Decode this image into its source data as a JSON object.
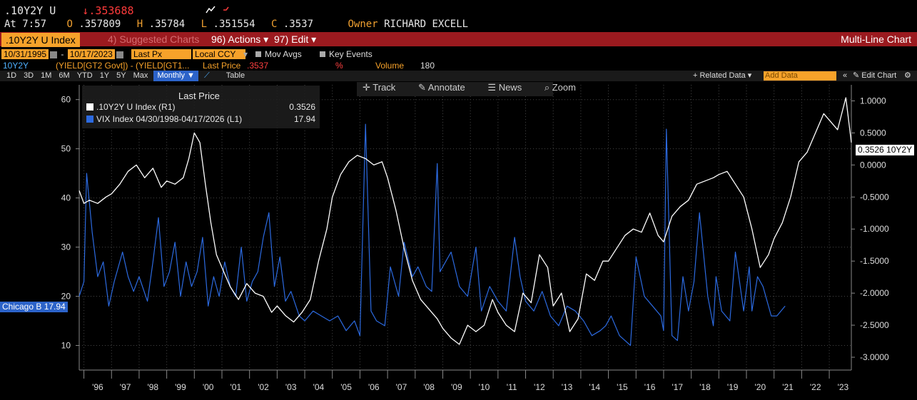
{
  "quote": {
    "ticker": ".10Y2Y U",
    "arrow": "↓",
    "last": ".353688",
    "at_label": "At",
    "time": "7:57",
    "open_label": "O",
    "open": ".357809",
    "high_label": "H",
    "high": ".35784",
    "low_label": "L",
    "low": ".351554",
    "close_label": "C",
    "close": ".3537",
    "owner_label": "Owner",
    "owner": "RICHARD EXCELL"
  },
  "menubar": {
    "security": ".10Y2Y U Index",
    "suggested": "4) Suggested Charts",
    "actions": "96) Actions",
    "edit": "97) Edit",
    "chart_type": "Multi-Line Chart"
  },
  "controls": {
    "start_date": "10/31/1995",
    "end_date": "10/17/2023",
    "price_field": "Last Px",
    "currency": "Local CCY",
    "mov_avgs": "Mov Avgs",
    "key_events": "Key Events"
  },
  "ticker_line": {
    "name": "10Y2Y",
    "formula": "(YIELD[GT2 Govt]) - (YIELD[GT1...",
    "last_price_label": "Last Price",
    "last_price": ".3537",
    "pct": "%",
    "volume_label": "Volume",
    "volume": "180"
  },
  "toolbar": {
    "periods": [
      "1D",
      "3D",
      "1M",
      "6M",
      "YTD",
      "1Y",
      "5Y",
      "Max"
    ],
    "frequency": "Monthly",
    "table": "Table",
    "related": "+ Related Data",
    "add_data": "Add Data",
    "edit_chart": "Edit Chart"
  },
  "chart_tools": {
    "track": "Track",
    "annotate": "Annotate",
    "news": "News",
    "zoom": "Zoom"
  },
  "legend": {
    "title": "Last Price",
    "s1_label": ".10Y2Y U Index  (R1)",
    "s1_value": "0.3526",
    "s2_label": "VIX Index 04/30/1998-04/17/2026   (L1)",
    "s2_value": "17.94"
  },
  "last_tags": {
    "right": "0.3526 10Y2Y",
    "left": "Chicago B 17.94"
  },
  "colors": {
    "bg": "#000000",
    "amber": "#f7a22a",
    "menu": "#9b1a1f",
    "series1": "#ffffff",
    "series2": "#2c6ae0"
  },
  "chart_data": {
    "type": "line",
    "x_tick_labels": [
      "'96",
      "'97",
      "'98",
      "'99",
      "'00",
      "'01",
      "'02",
      "'03",
      "'04",
      "'05",
      "'06",
      "'07",
      "'08",
      "'09",
      "'10",
      "'11",
      "'12",
      "'13",
      "'14",
      "'15",
      "'16",
      "'17",
      "'18",
      "'19",
      "'20",
      "'21",
      "'22",
      "'23"
    ],
    "xlim": [
      1995.83,
      2023.8
    ],
    "y_left": {
      "ticks": [
        10,
        20,
        30,
        40,
        50,
        60
      ],
      "lim": [
        5,
        63
      ]
    },
    "y_right": {
      "ticks": [
        1.0,
        0.5,
        0.0,
        -0.5,
        -1.0,
        -1.5,
        -2.0,
        -2.5,
        -3.0
      ],
      "tick_labels": [
        "1.0000",
        "0.5000",
        "0.0000",
        "-0.5000",
        "-1.0000",
        "-1.5000",
        "-2.0000",
        "-2.5000",
        "-3.0000"
      ],
      "lim": [
        -3.2,
        1.25
      ]
    },
    "grid": true,
    "series": [
      {
        "name": ".10Y2Y U Index",
        "axis": "right",
        "x": [
          1995.83,
          1996.0,
          1996.2,
          1996.5,
          1996.8,
          1997.0,
          1997.3,
          1997.6,
          1997.9,
          1998.2,
          1998.5,
          1998.8,
          1999.0,
          1999.3,
          1999.6,
          1999.8,
          2000.0,
          2000.2,
          2000.4,
          2000.6,
          2000.8,
          2001.0,
          2001.3,
          2001.6,
          2001.9,
          2002.2,
          2002.5,
          2002.8,
          2003.0,
          2003.3,
          2003.6,
          2003.9,
          2004.2,
          2004.5,
          2004.8,
          2005.0,
          2005.3,
          2005.6,
          2005.9,
          2006.2,
          2006.5,
          2006.8,
          2007.0,
          2007.3,
          2007.6,
          2007.9,
          2008.2,
          2008.5,
          2008.8,
          2009.0,
          2009.3,
          2009.6,
          2009.9,
          2010.2,
          2010.5,
          2010.8,
          2011.0,
          2011.3,
          2011.6,
          2011.9,
          2012.2,
          2012.5,
          2012.8,
          2013.0,
          2013.3,
          2013.6,
          2013.9,
          2014.2,
          2014.5,
          2014.8,
          2015.0,
          2015.3,
          2015.6,
          2015.9,
          2016.2,
          2016.5,
          2016.8,
          2017.0,
          2017.3,
          2017.6,
          2017.9,
          2018.2,
          2018.5,
          2018.8,
          2019.0,
          2019.3,
          2019.6,
          2019.9,
          2020.2,
          2020.5,
          2020.8,
          2021.0,
          2021.3,
          2021.6,
          2021.9,
          2022.2,
          2022.5,
          2022.8,
          2023.0,
          2023.3,
          2023.6,
          2023.8
        ],
        "y": [
          -0.4,
          -0.6,
          -0.55,
          -0.6,
          -0.5,
          -0.45,
          -0.3,
          -0.1,
          0.0,
          -0.2,
          -0.05,
          -0.35,
          -0.25,
          -0.3,
          -0.2,
          0.1,
          0.5,
          0.35,
          -0.3,
          -0.9,
          -1.4,
          -1.6,
          -1.9,
          -2.1,
          -1.85,
          -2.0,
          -2.05,
          -2.3,
          -2.2,
          -2.35,
          -2.45,
          -2.3,
          -2.1,
          -1.5,
          -1.0,
          -0.5,
          -0.15,
          0.05,
          0.15,
          0.1,
          0.0,
          0.05,
          -0.2,
          -0.7,
          -1.3,
          -1.8,
          -2.1,
          -2.25,
          -2.4,
          -2.55,
          -2.7,
          -2.8,
          -2.5,
          -2.6,
          -2.5,
          -2.1,
          -2.3,
          -2.5,
          -2.6,
          -2.0,
          -2.15,
          -1.4,
          -1.6,
          -2.2,
          -2.0,
          -2.6,
          -2.4,
          -1.7,
          -1.8,
          -1.5,
          -1.5,
          -1.3,
          -1.1,
          -1.0,
          -1.05,
          -0.75,
          -1.1,
          -1.2,
          -0.8,
          -0.65,
          -0.55,
          -0.3,
          -0.25,
          -0.2,
          -0.15,
          -0.1,
          -0.3,
          -0.5,
          -1.0,
          -1.6,
          -1.4,
          -1.15,
          -0.9,
          -0.5,
          0.05,
          0.2,
          0.5,
          0.8,
          0.7,
          0.55,
          1.05,
          0.35
        ]
      },
      {
        "name": "VIX Index",
        "axis": "left",
        "x": [
          1995.83,
          1996.0,
          1996.1,
          1996.3,
          1996.5,
          1996.7,
          1996.9,
          1997.1,
          1997.4,
          1997.6,
          1997.8,
          1998.0,
          1998.3,
          1998.5,
          1998.7,
          1998.9,
          1999.1,
          1999.3,
          1999.5,
          1999.7,
          1999.9,
          2000.1,
          2000.3,
          2000.5,
          2000.7,
          2000.9,
          2001.1,
          2001.3,
          2001.5,
          2001.7,
          2001.9,
          2002.1,
          2002.3,
          2002.5,
          2002.7,
          2002.9,
          2003.1,
          2003.3,
          2003.5,
          2003.8,
          2004.0,
          2004.3,
          2004.6,
          2004.9,
          2005.2,
          2005.5,
          2005.8,
          2006.0,
          2006.2,
          2006.4,
          2006.6,
          2006.9,
          2007.1,
          2007.4,
          2007.6,
          2007.9,
          2008.1,
          2008.4,
          2008.6,
          2008.8,
          2008.9,
          2009.1,
          2009.3,
          2009.6,
          2009.9,
          2010.2,
          2010.4,
          2010.7,
          2011.0,
          2011.3,
          2011.6,
          2011.8,
          2012.0,
          2012.3,
          2012.6,
          2012.9,
          2013.2,
          2013.5,
          2013.8,
          2014.1,
          2014.4,
          2014.7,
          2014.9,
          2015.1,
          2015.4,
          2015.6,
          2015.8,
          2016.0,
          2016.3,
          2016.6,
          2016.9,
          2017.0,
          2017.1,
          2017.3,
          2017.5,
          2017.7,
          2017.9,
          2018.1,
          2018.3,
          2018.6,
          2018.8,
          2018.9,
          2019.1,
          2019.4,
          2019.6,
          2019.9,
          2020.1,
          2020.2,
          2020.4,
          2020.6,
          2020.9,
          2021.1,
          2021.4
        ],
        "y": [
          20,
          23,
          45,
          33,
          24,
          27,
          18,
          23,
          29,
          24,
          21,
          24,
          19,
          27,
          36,
          22,
          25,
          31,
          20,
          27,
          22,
          25,
          32,
          18,
          24,
          20,
          27,
          22,
          20,
          30,
          19,
          23,
          25,
          32,
          37,
          22,
          28,
          19,
          21,
          16,
          15,
          17,
          16,
          15,
          16,
          13,
          15,
          12,
          55,
          17,
          15,
          14,
          26,
          20,
          31,
          24,
          26,
          22,
          21,
          47,
          25,
          27,
          29,
          22,
          20,
          30,
          17,
          22,
          19,
          17,
          32,
          24,
          19,
          17,
          21,
          16,
          14,
          18,
          17,
          15,
          12,
          13,
          14,
          16,
          12,
          11,
          10,
          28,
          20,
          18,
          16,
          13,
          54,
          12,
          11,
          24,
          17,
          23,
          37,
          20,
          14,
          24,
          17,
          15,
          29,
          17,
          26,
          17,
          24,
          22,
          16,
          16,
          18
        ]
      }
    ]
  }
}
